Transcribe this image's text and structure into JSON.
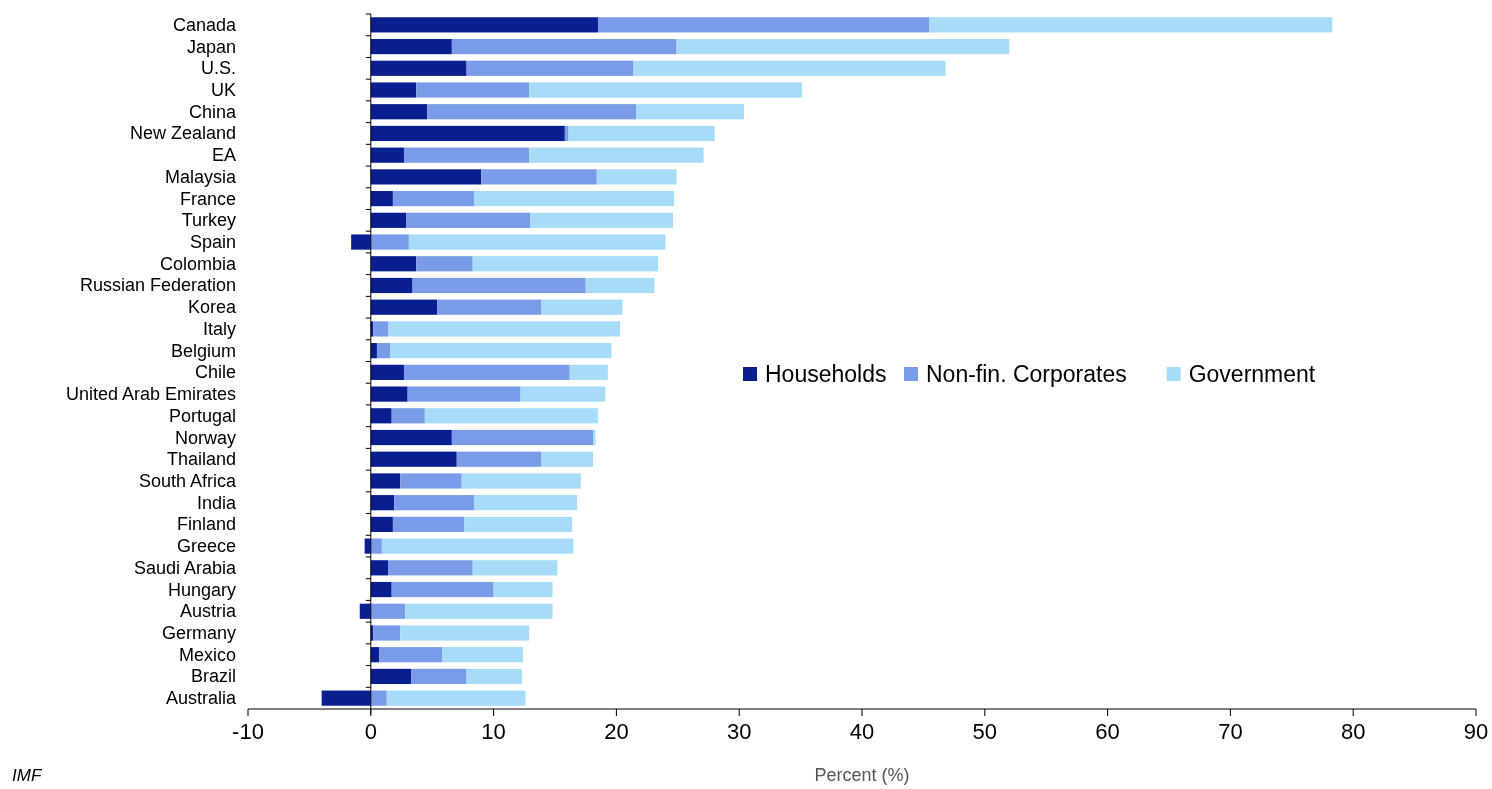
{
  "chart_data": {
    "type": "bar",
    "orientation": "horizontal",
    "stacked": true,
    "xlabel": "Percent (%)",
    "annotations": [
      "IMF"
    ],
    "categories": [
      "Canada",
      "Japan",
      "U.S.",
      "UK",
      "China",
      "New Zealand",
      "EA",
      "Malaysia",
      "France",
      "Turkey",
      "Spain",
      "Colombia",
      "Russian Federation",
      "Korea",
      "Italy",
      "Belgium",
      "Chile",
      "United Arab Emirates",
      "Portugal",
      "Norway",
      "Thailand",
      "South Africa",
      "India",
      "Finland",
      "Greece",
      "Saudi Arabia",
      "Hungary",
      "Austria",
      "Germany",
      "Mexico",
      "Brazil",
      "Australia"
    ],
    "series": [
      {
        "name": "Households",
        "color": "#0a1f8f",
        "values": [
          18.5,
          6.6,
          7.8,
          3.7,
          4.6,
          15.8,
          2.7,
          9.0,
          1.8,
          2.9,
          -1.6,
          3.7,
          3.4,
          5.4,
          0.2,
          0.5,
          2.7,
          3.0,
          1.7,
          6.6,
          7.0,
          2.4,
          1.9,
          1.8,
          -0.5,
          1.4,
          1.7,
          -0.9,
          0.2,
          0.7,
          3.3,
          -4.0
        ]
      },
      {
        "name": "Non-fin. Corporates",
        "color": "#7a9ce8",
        "values": [
          27.0,
          18.3,
          13.6,
          9.2,
          17.0,
          0.3,
          10.2,
          9.4,
          6.6,
          10.1,
          3.1,
          4.6,
          14.1,
          8.5,
          1.2,
          1.1,
          13.5,
          9.2,
          2.7,
          11.5,
          6.9,
          5.0,
          6.5,
          5.8,
          0.9,
          6.9,
          8.3,
          2.8,
          2.2,
          5.1,
          4.5,
          1.3
        ]
      },
      {
        "name": "Government",
        "color": "#a6dcf8",
        "values": [
          32.8,
          27.1,
          25.4,
          22.2,
          8.8,
          11.9,
          14.2,
          6.5,
          16.3,
          11.6,
          20.9,
          15.1,
          5.6,
          6.6,
          18.9,
          18.0,
          3.1,
          6.9,
          14.1,
          0.2,
          4.2,
          9.7,
          8.4,
          8.8,
          15.6,
          6.9,
          4.8,
          12.0,
          10.5,
          6.6,
          4.5,
          11.3
        ]
      }
    ],
    "xlim": [
      -10,
      90
    ],
    "xticks": [
      -10,
      0,
      10,
      20,
      30,
      40,
      50,
      60,
      70,
      80,
      90
    ],
    "legend": "right"
  }
}
